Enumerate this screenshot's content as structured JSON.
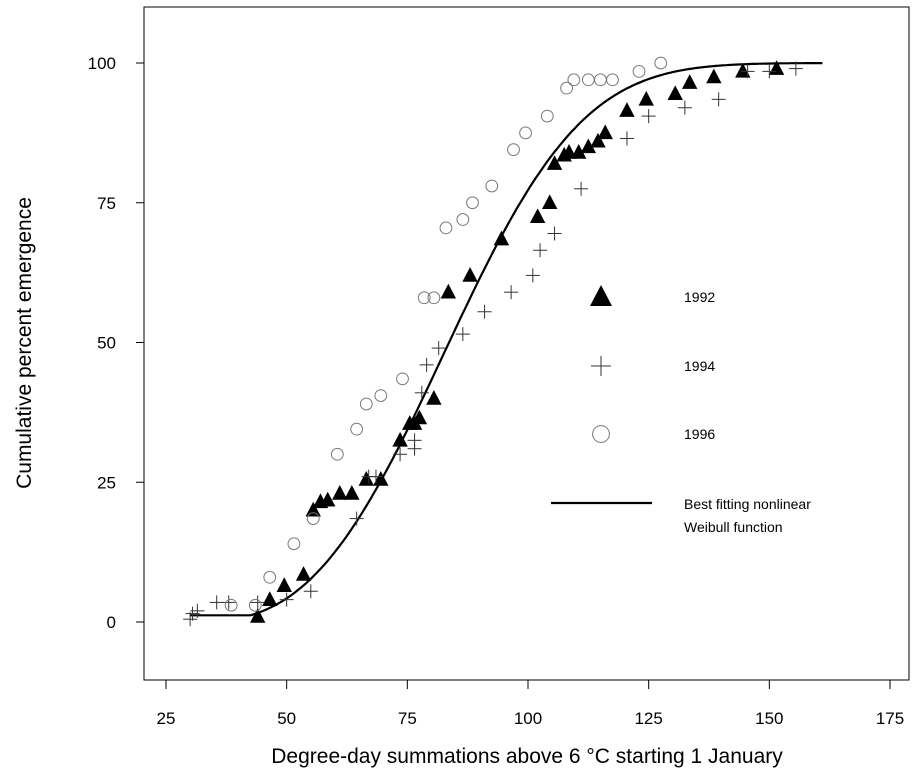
{
  "chart_data": {
    "type": "scatter",
    "xlabel": "Degree-day summations above 6 °C starting 1 January",
    "ylabel": "Cumulative percent emergence",
    "xlim": [
      25,
      175
    ],
    "ylim": [
      -10,
      110
    ],
    "x_ticks": [
      25,
      50,
      75,
      100,
      125,
      150,
      175
    ],
    "y_ticks": [
      0,
      25,
      50,
      75,
      100
    ],
    "x_tick_labels": [
      "25",
      "50",
      "75",
      "100",
      "125",
      "150",
      "175"
    ],
    "y_tick_labels": [
      "0",
      "25",
      "50",
      "75",
      "100"
    ],
    "grid": false,
    "legend_position": "right",
    "series": [
      {
        "name": "1992",
        "marker": "filled-triangle",
        "points": [
          [
            44,
            1
          ],
          [
            46.5,
            4
          ],
          [
            49.5,
            6.5
          ],
          [
            53.5,
            8.5
          ],
          [
            55.5,
            20
          ],
          [
            57,
            21.5
          ],
          [
            58.5,
            21.8
          ],
          [
            61,
            23
          ],
          [
            63.5,
            23
          ],
          [
            66.5,
            25.5
          ],
          [
            69.5,
            25.5
          ],
          [
            73.5,
            32.5
          ],
          [
            75.5,
            35.5
          ],
          [
            76.5,
            35.5
          ],
          [
            77.5,
            36.5
          ],
          [
            80.5,
            40
          ],
          [
            83.5,
            59
          ],
          [
            88,
            62
          ],
          [
            94.5,
            68.5
          ],
          [
            102,
            72.5
          ],
          [
            104.5,
            75
          ],
          [
            105.5,
            82
          ],
          [
            107.5,
            83.5
          ],
          [
            108.5,
            84
          ],
          [
            110.5,
            84
          ],
          [
            112.5,
            85
          ],
          [
            114.5,
            86
          ],
          [
            116,
            87.5
          ],
          [
            120.5,
            91.5
          ],
          [
            124.5,
            93.5
          ],
          [
            130.5,
            94.5
          ],
          [
            133.5,
            96.5
          ],
          [
            138.5,
            97.5
          ],
          [
            144.5,
            98.5
          ],
          [
            151.5,
            99
          ]
        ]
      },
      {
        "name": "1994",
        "marker": "plus",
        "points": [
          [
            30,
            0.5
          ],
          [
            30.5,
            1.5
          ],
          [
            31.5,
            2
          ],
          [
            35.5,
            3.5
          ],
          [
            38,
            3.5
          ],
          [
            44,
            3.5
          ],
          [
            50,
            4
          ],
          [
            55,
            5.5
          ],
          [
            64.5,
            18.5
          ],
          [
            67,
            26
          ],
          [
            68.5,
            26
          ],
          [
            73.5,
            30
          ],
          [
            76.5,
            31
          ],
          [
            76.5,
            32.5
          ],
          [
            78,
            41
          ],
          [
            79,
            46
          ],
          [
            81.5,
            49
          ],
          [
            86.5,
            51.5
          ],
          [
            91,
            55.5
          ],
          [
            96.5,
            59
          ],
          [
            101,
            62
          ],
          [
            102.5,
            66.5
          ],
          [
            105.5,
            69.5
          ],
          [
            111,
            77.5
          ],
          [
            120.5,
            86.5
          ],
          [
            125,
            90.5
          ],
          [
            132.5,
            92
          ],
          [
            139.5,
            93.5
          ],
          [
            145.5,
            98.5
          ],
          [
            150,
            98.5
          ],
          [
            155.5,
            99
          ]
        ]
      },
      {
        "name": "1996",
        "marker": "open-circle",
        "points": [
          [
            38.5,
            3
          ],
          [
            43.5,
            3
          ],
          [
            46.5,
            8
          ],
          [
            51.5,
            14
          ],
          [
            55.5,
            18.5
          ],
          [
            60.5,
            30
          ],
          [
            64.5,
            34.5
          ],
          [
            66.5,
            39
          ],
          [
            69.5,
            40.5
          ],
          [
            74,
            43.5
          ],
          [
            78.5,
            58
          ],
          [
            80.5,
            58
          ],
          [
            83,
            70.5
          ],
          [
            86.5,
            72
          ],
          [
            88.5,
            75
          ],
          [
            92.5,
            78
          ],
          [
            97,
            84.5
          ],
          [
            99.5,
            87.5
          ],
          [
            104,
            90.5
          ],
          [
            108,
            95.5
          ],
          [
            109.5,
            97
          ],
          [
            112.5,
            97
          ],
          [
            115,
            97
          ],
          [
            117.5,
            97
          ],
          [
            123,
            98.5
          ],
          [
            127.5,
            100
          ]
        ]
      }
    ],
    "fit": {
      "name": "Best fitting nonlinear Weibull function",
      "function": "weibull-cdf",
      "shift": 29,
      "scale": 62,
      "shape": 2.9,
      "x_range": [
        30,
        161
      ]
    },
    "legend": {
      "items": [
        {
          "label": "1992",
          "marker": "filled-triangle"
        },
        {
          "label": "1994",
          "marker": "plus"
        },
        {
          "label": "1996",
          "marker": "open-circle"
        }
      ],
      "fit_label_line1": "Best fitting nonlinear",
      "fit_label_line2": "Weibull function"
    }
  }
}
